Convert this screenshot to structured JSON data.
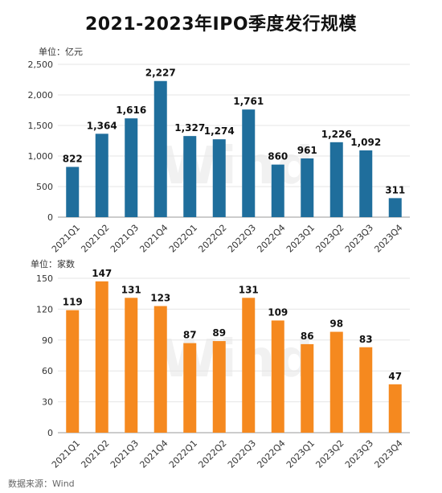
{
  "title": "2021-2023年IPO季度发行规模",
  "source": "数据来源：Wind",
  "watermark": "Wind",
  "chart_data": [
    {
      "type": "bar",
      "unit_label": "单位：亿元",
      "categories": [
        "2021Q1",
        "2021Q2",
        "2021Q3",
        "2021Q4",
        "2022Q1",
        "2022Q2",
        "2022Q3",
        "2022Q4",
        "2023Q1",
        "2023Q2",
        "2023Q3",
        "2023Q4"
      ],
      "values": [
        822,
        1364,
        1616,
        2227,
        1327,
        1274,
        1761,
        860,
        961,
        1226,
        1092,
        311
      ],
      "value_labels": [
        "822",
        "1,364",
        "1,616",
        "2,227",
        "1,327",
        "1,274",
        "1,761",
        "860",
        "961",
        "1,226",
        "1,092",
        "311"
      ],
      "yticks": [
        "0",
        "500",
        "1,000",
        "1,500",
        "2,000",
        "2,500"
      ],
      "ytick_values": [
        0,
        500,
        1000,
        1500,
        2000,
        2500
      ],
      "ylim": [
        0,
        2500
      ],
      "color": "#1f6e9c",
      "grid": true
    },
    {
      "type": "bar",
      "unit_label": "单位：家数",
      "categories": [
        "2021Q1",
        "2021Q2",
        "2021Q3",
        "2021Q4",
        "2022Q1",
        "2022Q2",
        "2022Q3",
        "2022Q4",
        "2023Q1",
        "2023Q2",
        "2023Q3",
        "2023Q4"
      ],
      "values": [
        119,
        147,
        131,
        123,
        87,
        89,
        131,
        109,
        86,
        98,
        83,
        47
      ],
      "value_labels": [
        "119",
        "147",
        "131",
        "123",
        "87",
        "89",
        "131",
        "109",
        "86",
        "98",
        "83",
        "47"
      ],
      "yticks": [
        "0",
        "30",
        "60",
        "90",
        "120",
        "150"
      ],
      "ytick_values": [
        0,
        30,
        60,
        90,
        120,
        150
      ],
      "ylim": [
        0,
        150
      ],
      "color": "#f5891f",
      "grid": true
    }
  ]
}
